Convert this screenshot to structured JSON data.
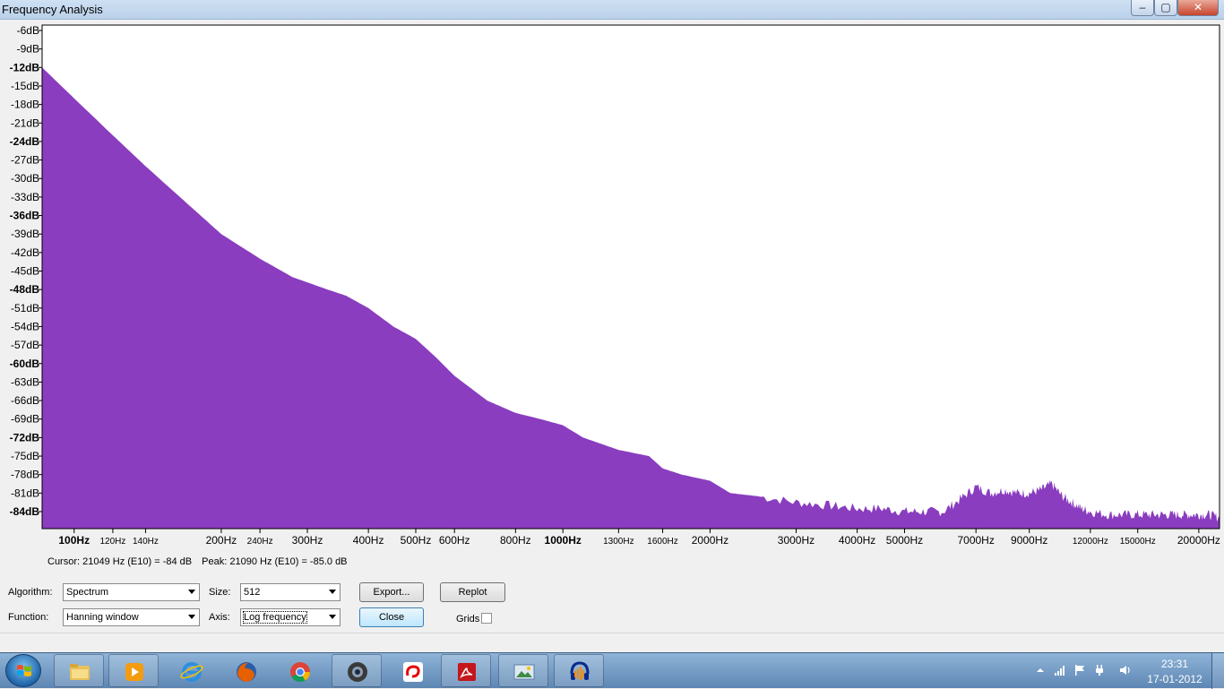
{
  "window": {
    "title": "Frequency Analysis",
    "minimize_glyph": "–",
    "maximize_glyph": "▢",
    "close_glyph": "✕"
  },
  "chart_data": {
    "type": "area",
    "x_scale": "log",
    "xlim": [
      86,
      22050
    ],
    "ylim": [
      -85,
      -5
    ],
    "y_ticks": [
      {
        "value": -6,
        "label": "-6dB",
        "bold": false
      },
      {
        "value": -9,
        "label": "-9dB",
        "bold": false
      },
      {
        "value": -12,
        "label": "-12dB",
        "bold": true
      },
      {
        "value": -15,
        "label": "-15dB",
        "bold": false
      },
      {
        "value": -18,
        "label": "-18dB",
        "bold": false
      },
      {
        "value": -21,
        "label": "-21dB",
        "bold": false
      },
      {
        "value": -24,
        "label": "-24dB",
        "bold": true
      },
      {
        "value": -27,
        "label": "-27dB",
        "bold": false
      },
      {
        "value": -30,
        "label": "-30dB",
        "bold": false
      },
      {
        "value": -33,
        "label": "-33dB",
        "bold": false
      },
      {
        "value": -36,
        "label": "-36dB",
        "bold": true
      },
      {
        "value": -39,
        "label": "-39dB",
        "bold": false
      },
      {
        "value": -42,
        "label": "-42dB",
        "bold": false
      },
      {
        "value": -45,
        "label": "-45dB",
        "bold": false
      },
      {
        "value": -48,
        "label": "-48dB",
        "bold": true
      },
      {
        "value": -51,
        "label": "-51dB",
        "bold": false
      },
      {
        "value": -54,
        "label": "-54dB",
        "bold": false
      },
      {
        "value": -57,
        "label": "-57dB",
        "bold": false
      },
      {
        "value": -60,
        "label": "-60dB",
        "bold": true
      },
      {
        "value": -63,
        "label": "-63dB",
        "bold": false
      },
      {
        "value": -66,
        "label": "-66dB",
        "bold": false
      },
      {
        "value": -69,
        "label": "-69dB",
        "bold": false
      },
      {
        "value": -72,
        "label": "-72dB",
        "bold": true
      },
      {
        "value": -75,
        "label": "-75dB",
        "bold": false
      },
      {
        "value": -78,
        "label": "-78dB",
        "bold": false
      },
      {
        "value": -81,
        "label": "-81dB",
        "bold": false
      },
      {
        "value": -84,
        "label": "-84dB",
        "bold": true
      }
    ],
    "x_ticks": [
      {
        "value": 100,
        "label": "100Hz",
        "style": "bold"
      },
      {
        "value": 120,
        "label": "120Hz",
        "style": "small"
      },
      {
        "value": 140,
        "label": "140Hz",
        "style": "small"
      },
      {
        "value": 200,
        "label": "200Hz",
        "style": "normal"
      },
      {
        "value": 240,
        "label": "240Hz",
        "style": "small"
      },
      {
        "value": 300,
        "label": "300Hz",
        "style": "normal"
      },
      {
        "value": 400,
        "label": "400Hz",
        "style": "normal"
      },
      {
        "value": 500,
        "label": "500Hz",
        "style": "normal"
      },
      {
        "value": 600,
        "label": "600Hz",
        "style": "normal"
      },
      {
        "value": 800,
        "label": "800Hz",
        "style": "normal"
      },
      {
        "value": 1000,
        "label": "1000Hz",
        "style": "bold"
      },
      {
        "value": 1300,
        "label": "1300Hz",
        "style": "small"
      },
      {
        "value": 1600,
        "label": "1600Hz",
        "style": "small"
      },
      {
        "value": 2000,
        "label": "2000Hz",
        "style": "normal"
      },
      {
        "value": 3000,
        "label": "3000Hz",
        "style": "normal"
      },
      {
        "value": 4000,
        "label": "4000Hz",
        "style": "normal"
      },
      {
        "value": 5000,
        "label": "5000Hz",
        "style": "normal"
      },
      {
        "value": 7000,
        "label": "7000Hz",
        "style": "normal"
      },
      {
        "value": 9000,
        "label": "9000Hz",
        "style": "normal"
      },
      {
        "value": 12000,
        "label": "12000Hz",
        "style": "small"
      },
      {
        "value": 15000,
        "label": "15000Hz",
        "style": "small"
      },
      {
        "value": 20000,
        "label": "20000Hz",
        "style": "normal"
      }
    ],
    "series": [
      {
        "color": "#8a3dbf",
        "x": [
          86,
          100,
          120,
          140,
          170,
          200,
          240,
          280,
          330,
          360,
          400,
          450,
          500,
          550,
          600,
          700,
          800,
          900,
          1000,
          1100,
          1300,
          1500,
          1600,
          1750,
          2000,
          2200,
          2500,
          3000,
          3500,
          4000,
          4500,
          5000,
          5500,
          6000,
          6500,
          7000,
          7500,
          8000,
          8500,
          9000,
          9500,
          10000,
          10500,
          11000,
          11500,
          12000,
          13000,
          14000,
          15000,
          16000,
          17000,
          18000,
          19000,
          20000,
          21000,
          22050
        ],
        "y": [
          -12,
          -17,
          -23,
          -28,
          -34,
          -39,
          -43,
          -46,
          -48,
          -49,
          -51,
          -54,
          -56,
          -59,
          -62,
          -66,
          -68,
          -69,
          -70,
          -72,
          -74,
          -75,
          -77,
          -78,
          -79,
          -81,
          -81.5,
          -82.5,
          -83,
          -83.5,
          -83.5,
          -84,
          -84,
          -84,
          -82,
          -80,
          -81,
          -80.5,
          -81,
          -81,
          -80.5,
          -79.5,
          -81.5,
          -82.5,
          -83.5,
          -84,
          -84.5,
          -84.5,
          -84.5,
          -84.5,
          -84.5,
          -84.5,
          -84.5,
          -84.5,
          -84.5,
          -85
        ]
      }
    ],
    "grid": false
  },
  "readout": {
    "cursor": "Cursor: 21049 Hz (E10) = -84 dB",
    "peak": "Peak: 21090 Hz (E10) = -85.0 dB"
  },
  "controls": {
    "algorithm_label": "Algorithm:",
    "algorithm_value": "Spectrum",
    "size_label": "Size:",
    "size_value": "512",
    "function_label": "Function:",
    "function_value": "Hanning window",
    "axis_label": "Axis:",
    "axis_value": "Log frequency",
    "export_button": "Export...",
    "replot_button": "Replot",
    "close_button": "Close",
    "grids_label": "Grids"
  },
  "taskbar": {
    "apps": [
      "file-explorer",
      "media-player",
      "internet-explorer",
      "firefox",
      "chrome",
      "camera",
      "airtel",
      "adobe-reader",
      "photo-viewer",
      "audacity"
    ],
    "time": "23:31",
    "date": "17-01-2012"
  }
}
